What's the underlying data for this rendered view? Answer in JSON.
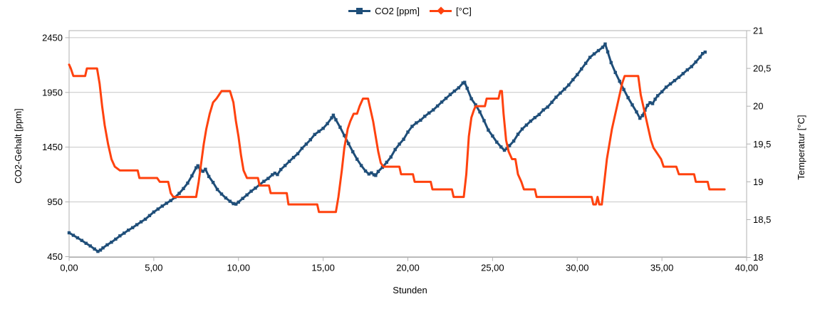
{
  "chart_data": {
    "type": "line",
    "title": "",
    "xlabel": "Stunden",
    "grid": "horizontal",
    "colors": {
      "grid": "#c6c6c6",
      "axis": "#b0b0b0",
      "text": "#000000",
      "background": "#ffffff"
    },
    "x_axis": {
      "lim": [
        0,
        40
      ],
      "tick_values": [
        0,
        5,
        10,
        15,
        20,
        25,
        30,
        35,
        40
      ],
      "tick_labels": [
        "0,00",
        "5,00",
        "10,00",
        "15,00",
        "20,00",
        "25,00",
        "30,00",
        "35,00",
        "40,00"
      ]
    },
    "left_axis": {
      "title": "CO2-Gehalt [ppm]",
      "lim": [
        450,
        2450
      ],
      "tick_values": [
        450,
        950,
        1450,
        1950,
        2450
      ],
      "tick_labels": [
        "450",
        "950",
        "1450",
        "1950",
        "2450"
      ]
    },
    "right_axis": {
      "title": "Temperatur [°C]",
      "lim": [
        18,
        21
      ],
      "tick_values": [
        18,
        18.5,
        19,
        19.5,
        20,
        20.5,
        21
      ],
      "tick_labels": [
        "18",
        "18,5",
        "19",
        "19,5",
        "20",
        "20,5",
        "21"
      ]
    },
    "legend": {
      "position": "top-center",
      "items": [
        {
          "label": "CO2 [ppm]",
          "marker": "square",
          "color": "#1f4e79"
        },
        {
          "label": "[°C]",
          "marker": "diamond",
          "color": "#ff420e"
        }
      ]
    },
    "series": [
      {
        "name": "CO2 [ppm]",
        "axis": "left",
        "color": "#1f4e79",
        "marker": "square",
        "line_width": 3,
        "points": [
          [
            0,
            668
          ],
          [
            0.25,
            645
          ],
          [
            0.5,
            622
          ],
          [
            0.75,
            598
          ],
          [
            1,
            572
          ],
          [
            1.25,
            548
          ],
          [
            1.5,
            520
          ],
          [
            1.7,
            498
          ],
          [
            1.85,
            510
          ],
          [
            2,
            530
          ],
          [
            2.25,
            558
          ],
          [
            2.5,
            582
          ],
          [
            2.75,
            610
          ],
          [
            3,
            640
          ],
          [
            3.25,
            665
          ],
          [
            3.5,
            692
          ],
          [
            3.75,
            715
          ],
          [
            4,
            742
          ],
          [
            4.25,
            768
          ],
          [
            4.5,
            792
          ],
          [
            4.75,
            825
          ],
          [
            5,
            858
          ],
          [
            5.25,
            885
          ],
          [
            5.5,
            912
          ],
          [
            5.75,
            938
          ],
          [
            6,
            962
          ],
          [
            6.25,
            992
          ],
          [
            6.5,
            1028
          ],
          [
            6.75,
            1072
          ],
          [
            7,
            1122
          ],
          [
            7.25,
            1188
          ],
          [
            7.5,
            1262
          ],
          [
            7.6,
            1280
          ],
          [
            7.75,
            1242
          ],
          [
            7.9,
            1230
          ],
          [
            8.05,
            1248
          ],
          [
            8.25,
            1182
          ],
          [
            8.5,
            1128
          ],
          [
            8.75,
            1064
          ],
          [
            9,
            1022
          ],
          [
            9.25,
            986
          ],
          [
            9.5,
            956
          ],
          [
            9.7,
            934
          ],
          [
            9.85,
            930
          ],
          [
            10,
            948
          ],
          [
            10.25,
            982
          ],
          [
            10.5,
            1014
          ],
          [
            10.75,
            1048
          ],
          [
            11,
            1076
          ],
          [
            11.25,
            1108
          ],
          [
            11.5,
            1138
          ],
          [
            11.75,
            1164
          ],
          [
            12,
            1198
          ],
          [
            12.15,
            1212
          ],
          [
            12.3,
            1200
          ],
          [
            12.5,
            1246
          ],
          [
            12.75,
            1282
          ],
          [
            13,
            1320
          ],
          [
            13.25,
            1356
          ],
          [
            13.5,
            1390
          ],
          [
            13.75,
            1440
          ],
          [
            14,
            1478
          ],
          [
            14.25,
            1518
          ],
          [
            14.5,
            1566
          ],
          [
            14.75,
            1594
          ],
          [
            15,
            1622
          ],
          [
            15.25,
            1665
          ],
          [
            15.5,
            1718
          ],
          [
            15.6,
            1742
          ],
          [
            15.75,
            1700
          ],
          [
            16,
            1632
          ],
          [
            16.25,
            1556
          ],
          [
            16.5,
            1482
          ],
          [
            16.75,
            1408
          ],
          [
            17,
            1340
          ],
          [
            17.25,
            1282
          ],
          [
            17.5,
            1232
          ],
          [
            17.7,
            1205
          ],
          [
            17.85,
            1215
          ],
          [
            18,
            1198
          ],
          [
            18.1,
            1192
          ],
          [
            18.25,
            1228
          ],
          [
            18.5,
            1266
          ],
          [
            18.75,
            1312
          ],
          [
            19,
            1360
          ],
          [
            19.25,
            1428
          ],
          [
            19.5,
            1478
          ],
          [
            19.75,
            1522
          ],
          [
            20,
            1588
          ],
          [
            20.25,
            1640
          ],
          [
            20.5,
            1672
          ],
          [
            20.75,
            1696
          ],
          [
            21,
            1732
          ],
          [
            21.25,
            1762
          ],
          [
            21.5,
            1790
          ],
          [
            21.75,
            1826
          ],
          [
            22,
            1862
          ],
          [
            22.25,
            1896
          ],
          [
            22.5,
            1930
          ],
          [
            22.75,
            1962
          ],
          [
            23,
            1992
          ],
          [
            23.25,
            2036
          ],
          [
            23.35,
            2042
          ],
          [
            23.5,
            1988
          ],
          [
            23.75,
            1892
          ],
          [
            24,
            1836
          ],
          [
            24.25,
            1772
          ],
          [
            24.5,
            1692
          ],
          [
            24.75,
            1606
          ],
          [
            25,
            1552
          ],
          [
            25.25,
            1496
          ],
          [
            25.5,
            1452
          ],
          [
            25.7,
            1422
          ],
          [
            25.85,
            1438
          ],
          [
            26,
            1464
          ],
          [
            26.25,
            1506
          ],
          [
            26.5,
            1568
          ],
          [
            26.75,
            1616
          ],
          [
            27,
            1652
          ],
          [
            27.25,
            1688
          ],
          [
            27.5,
            1720
          ],
          [
            27.75,
            1748
          ],
          [
            28,
            1790
          ],
          [
            28.25,
            1816
          ],
          [
            28.5,
            1860
          ],
          [
            28.75,
            1906
          ],
          [
            29,
            1944
          ],
          [
            29.25,
            1980
          ],
          [
            29.5,
            2018
          ],
          [
            29.75,
            2066
          ],
          [
            30,
            2112
          ],
          [
            30.25,
            2164
          ],
          [
            30.5,
            2216
          ],
          [
            30.75,
            2270
          ],
          [
            31,
            2302
          ],
          [
            31.25,
            2332
          ],
          [
            31.5,
            2362
          ],
          [
            31.65,
            2392
          ],
          [
            31.8,
            2320
          ],
          [
            32,
            2222
          ],
          [
            32.25,
            2132
          ],
          [
            32.5,
            2052
          ],
          [
            32.75,
            1976
          ],
          [
            33,
            1902
          ],
          [
            33.25,
            1836
          ],
          [
            33.5,
            1772
          ],
          [
            33.7,
            1714
          ],
          [
            33.85,
            1738
          ],
          [
            34,
            1788
          ],
          [
            34.15,
            1832
          ],
          [
            34.3,
            1856
          ],
          [
            34.45,
            1848
          ],
          [
            34.6,
            1888
          ],
          [
            34.75,
            1920
          ],
          [
            35,
            1956
          ],
          [
            35.25,
            1998
          ],
          [
            35.5,
            2028
          ],
          [
            35.75,
            2058
          ],
          [
            36,
            2088
          ],
          [
            36.25,
            2122
          ],
          [
            36.5,
            2156
          ],
          [
            36.75,
            2186
          ],
          [
            37,
            2228
          ],
          [
            37.25,
            2272
          ],
          [
            37.4,
            2305
          ],
          [
            37.55,
            2318
          ]
        ]
      },
      {
        "name": "[°C]",
        "axis": "right",
        "color": "#ff420e",
        "marker": "none",
        "line_width": 3,
        "points": [
          [
            0,
            20.55
          ],
          [
            0.1,
            20.5
          ],
          [
            0.25,
            20.4
          ],
          [
            0.95,
            20.4
          ],
          [
            1.05,
            20.5
          ],
          [
            1.65,
            20.5
          ],
          [
            1.8,
            20.3
          ],
          [
            1.95,
            20.0
          ],
          [
            2.1,
            19.75
          ],
          [
            2.3,
            19.5
          ],
          [
            2.5,
            19.3
          ],
          [
            2.7,
            19.2
          ],
          [
            3,
            19.15
          ],
          [
            4.05,
            19.15
          ],
          [
            4.15,
            19.05
          ],
          [
            5.2,
            19.05
          ],
          [
            5.35,
            19.0
          ],
          [
            5.85,
            19.0
          ],
          [
            6,
            18.85
          ],
          [
            6.15,
            18.8
          ],
          [
            7.5,
            18.8
          ],
          [
            7.65,
            19.0
          ],
          [
            7.8,
            19.25
          ],
          [
            7.95,
            19.5
          ],
          [
            8.1,
            19.7
          ],
          [
            8.3,
            19.9
          ],
          [
            8.5,
            20.05
          ],
          [
            8.7,
            20.1
          ],
          [
            8.85,
            20.15
          ],
          [
            9,
            20.2
          ],
          [
            9.5,
            20.2
          ],
          [
            9.7,
            20.05
          ],
          [
            9.85,
            19.8
          ],
          [
            10,
            19.6
          ],
          [
            10.15,
            19.35
          ],
          [
            10.3,
            19.15
          ],
          [
            10.5,
            19.05
          ],
          [
            11.15,
            19.05
          ],
          [
            11.25,
            18.95
          ],
          [
            11.8,
            18.95
          ],
          [
            11.9,
            18.85
          ],
          [
            12.85,
            18.85
          ],
          [
            12.95,
            18.7
          ],
          [
            14.65,
            18.7
          ],
          [
            14.75,
            18.6
          ],
          [
            15.75,
            18.6
          ],
          [
            15.9,
            18.8
          ],
          [
            16.1,
            19.15
          ],
          [
            16.25,
            19.45
          ],
          [
            16.45,
            19.7
          ],
          [
            16.6,
            19.8
          ],
          [
            16.8,
            19.9
          ],
          [
            17,
            19.9
          ],
          [
            17.15,
            20.0
          ],
          [
            17.35,
            20.1
          ],
          [
            17.65,
            20.1
          ],
          [
            17.8,
            19.95
          ],
          [
            17.95,
            19.8
          ],
          [
            18.1,
            19.6
          ],
          [
            18.25,
            19.4
          ],
          [
            18.4,
            19.25
          ],
          [
            18.55,
            19.2
          ],
          [
            19.5,
            19.2
          ],
          [
            19.6,
            19.1
          ],
          [
            20.3,
            19.1
          ],
          [
            20.4,
            19.0
          ],
          [
            21.35,
            19.0
          ],
          [
            21.45,
            18.9
          ],
          [
            22.6,
            18.9
          ],
          [
            22.7,
            18.8
          ],
          [
            23.3,
            18.8
          ],
          [
            23.45,
            19.1
          ],
          [
            23.6,
            19.6
          ],
          [
            23.75,
            19.85
          ],
          [
            23.9,
            19.95
          ],
          [
            24,
            20.0
          ],
          [
            24.55,
            20.0
          ],
          [
            24.65,
            20.1
          ],
          [
            25.35,
            20.1
          ],
          [
            25.45,
            20.2
          ],
          [
            25.55,
            20.2
          ],
          [
            25.65,
            19.9
          ],
          [
            25.8,
            19.55
          ],
          [
            25.95,
            19.4
          ],
          [
            26.15,
            19.3
          ],
          [
            26.35,
            19.3
          ],
          [
            26.5,
            19.1
          ],
          [
            26.7,
            19.0
          ],
          [
            26.85,
            18.9
          ],
          [
            27.5,
            18.9
          ],
          [
            27.6,
            18.8
          ],
          [
            30.85,
            18.8
          ],
          [
            30.95,
            18.7
          ],
          [
            31.1,
            18.7
          ],
          [
            31.2,
            18.8
          ],
          [
            31.3,
            18.7
          ],
          [
            31.45,
            18.7
          ],
          [
            31.6,
            19.0
          ],
          [
            31.75,
            19.3
          ],
          [
            31.9,
            19.5
          ],
          [
            32.05,
            19.7
          ],
          [
            32.2,
            19.85
          ],
          [
            32.35,
            20.0
          ],
          [
            32.5,
            20.15
          ],
          [
            32.65,
            20.3
          ],
          [
            32.8,
            20.4
          ],
          [
            33.6,
            20.4
          ],
          [
            33.75,
            20.15
          ],
          [
            33.9,
            20.0
          ],
          [
            34.05,
            19.85
          ],
          [
            34.2,
            19.7
          ],
          [
            34.35,
            19.55
          ],
          [
            34.5,
            19.45
          ],
          [
            34.65,
            19.4
          ],
          [
            34.8,
            19.35
          ],
          [
            34.95,
            19.3
          ],
          [
            35.1,
            19.2
          ],
          [
            35.85,
            19.2
          ],
          [
            36,
            19.1
          ],
          [
            36.9,
            19.1
          ],
          [
            37,
            19.0
          ],
          [
            37.7,
            19.0
          ],
          [
            37.8,
            18.9
          ],
          [
            38.7,
            18.9
          ]
        ]
      }
    ]
  }
}
